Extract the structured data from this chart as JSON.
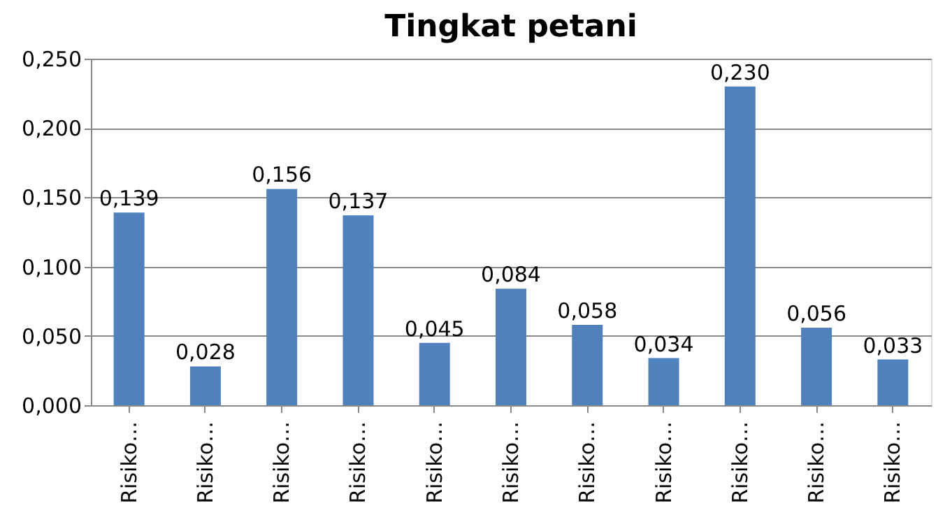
{
  "chart_data": {
    "type": "bar",
    "title": "Tingkat petani",
    "categories": [
      "Risiko…",
      "Risiko…",
      "Risiko…",
      "Risiko…",
      "Risiko…",
      "Risiko…",
      "Risiko…",
      "Risiko…",
      "Risiko…",
      "Risiko…",
      "Risiko…"
    ],
    "values": [
      0.139,
      0.028,
      0.156,
      0.137,
      0.045,
      0.084,
      0.058,
      0.034,
      0.23,
      0.056,
      0.033
    ],
    "value_labels": [
      "0,139",
      "0,028",
      "0,156",
      "0,137",
      "0,045",
      "0,084",
      "0,058",
      "0,034",
      "0,230",
      "0,056",
      "0,033"
    ],
    "color": "#4f81bd",
    "ylim": [
      0,
      0.25
    ],
    "yticks": [
      {
        "value": 0,
        "label": "0,000"
      },
      {
        "value": 0.05,
        "label": "0,050"
      },
      {
        "value": 0.1,
        "label": "0,100"
      },
      {
        "value": 0.15,
        "label": "0,150"
      },
      {
        "value": 0.2,
        "label": "0,200"
      },
      {
        "value": 0.25,
        "label": "0,250"
      }
    ],
    "grid": "y"
  }
}
